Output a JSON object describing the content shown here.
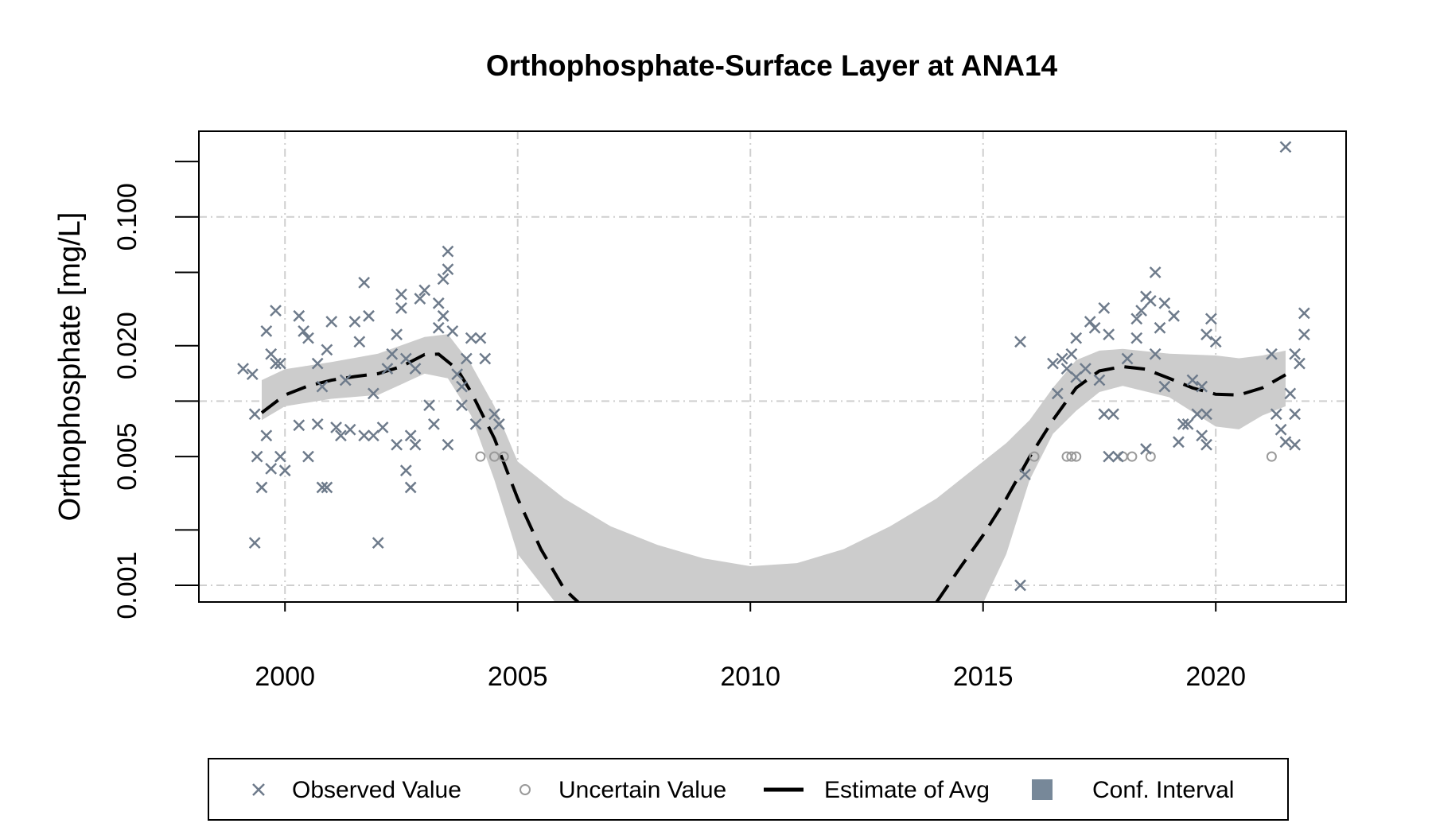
{
  "chart_data": {
    "type": "scatter",
    "title": "Orthophosphate-Surface Layer at ANA14",
    "y_label": "Orthophosphate [mg/L]",
    "log_y": true,
    "xlim": [
      1998.15,
      2022.8
    ],
    "ylim": [
      0.000812,
      0.292
    ],
    "xticks": [
      2000,
      2005,
      2010,
      2015,
      2020
    ],
    "yticks": [
      0.001,
      0.005,
      {
        "value": 0.02,
        "label": "0.020"
      },
      {
        "value": 0.1,
        "label": "0.100"
      }
    ],
    "yminorticks": [
      0.002,
      0.01,
      0.05,
      0.2
    ],
    "ygrid": [
      0.001,
      0.01,
      0.1
    ],
    "grid": true,
    "legend": "bottom",
    "series": [
      {
        "name": "Observed Value",
        "kind": "x",
        "color": "#6e7b8b",
        "x": [
          1999.1,
          1999.3,
          1999.35,
          1999.4,
          1999.35,
          1999.5,
          1999.6,
          1999.7,
          1999.6,
          1999.7,
          1999.8,
          1999.8,
          1999.9,
          1999.9,
          2000.0,
          2000.3,
          2000.3,
          2000.4,
          2000.5,
          2000.5,
          2000.7,
          2000.7,
          2000.8,
          2000.8,
          2000.9,
          2000.9,
          2001.0,
          2001.1,
          2001.2,
          2001.3,
          2001.4,
          2001.5,
          2001.6,
          2001.7,
          2001.7,
          2001.8,
          2001.9,
          2001.9,
          2002.0,
          2002.1,
          2002.2,
          2002.3,
          2002.4,
          2002.4,
          2002.5,
          2002.5,
          2002.6,
          2002.6,
          2002.7,
          2002.7,
          2002.8,
          2002.9,
          2002.8,
          2003.0,
          2003.1,
          2003.2,
          2003.3,
          2003.3,
          2003.4,
          2003.4,
          2003.5,
          2003.5,
          2003.5,
          2003.6,
          2003.7,
          2003.8,
          2003.8,
          2003.9,
          2004.0,
          2004.1,
          2004.2,
          2004.3,
          2004.5,
          2004.6,
          2015.8,
          2015.8,
          2015.9,
          2016.5,
          2016.6,
          2016.7,
          2016.8,
          2016.9,
          2017.0,
          2017.0,
          2017.2,
          2017.3,
          2017.4,
          2017.5,
          2017.6,
          2017.6,
          2017.7,
          2017.7,
          2017.8,
          2017.9,
          2018.1,
          2018.3,
          2018.3,
          2018.4,
          2018.5,
          2018.5,
          2018.6,
          2018.7,
          2018.7,
          2018.8,
          2018.9,
          2018.9,
          2019.1,
          2019.2,
          2019.3,
          2019.4,
          2019.5,
          2019.6,
          2019.7,
          2019.7,
          2019.8,
          2019.8,
          2019.8,
          2019.9,
          2020.0,
          2021.2,
          2021.3,
          2021.4,
          2021.5,
          2021.5,
          2021.6,
          2021.7,
          2021.7,
          2021.9,
          2021.8,
          2021.7,
          2021.9
        ],
        "values": [
          0.015,
          0.014,
          0.0085,
          0.005,
          0.0017,
          0.0034,
          0.0065,
          0.0043,
          0.024,
          0.018,
          0.016,
          0.031,
          0.016,
          0.005,
          0.0042,
          0.0074,
          0.029,
          0.024,
          0.022,
          0.005,
          0.016,
          0.0075,
          0.012,
          0.0034,
          0.019,
          0.0034,
          0.027,
          0.0072,
          0.0065,
          0.013,
          0.007,
          0.027,
          0.021,
          0.044,
          0.0065,
          0.029,
          0.011,
          0.0065,
          0.0017,
          0.0072,
          0.015,
          0.018,
          0.023,
          0.0058,
          0.038,
          0.032,
          0.017,
          0.0042,
          0.0034,
          0.0065,
          0.015,
          0.036,
          0.0058,
          0.04,
          0.0095,
          0.0075,
          0.034,
          0.025,
          0.029,
          0.046,
          0.052,
          0.065,
          0.0058,
          0.024,
          0.014,
          0.012,
          0.0095,
          0.017,
          0.022,
          0.0075,
          0.022,
          0.017,
          0.0085,
          0.0075,
          0.021,
          0.001,
          0.004,
          0.016,
          0.011,
          0.017,
          0.015,
          0.018,
          0.022,
          0.0135,
          0.015,
          0.027,
          0.025,
          0.013,
          0.032,
          0.0085,
          0.023,
          0.005,
          0.0085,
          0.005,
          0.017,
          0.022,
          0.028,
          0.031,
          0.037,
          0.0055,
          0.035,
          0.05,
          0.018,
          0.025,
          0.034,
          0.012,
          0.029,
          0.006,
          0.0075,
          0.0075,
          0.013,
          0.0085,
          0.012,
          0.0065,
          0.0085,
          0.0058,
          0.023,
          0.028,
          0.021,
          0.018,
          0.0085,
          0.007,
          0.006,
          0.24,
          0.011,
          0.0085,
          0.018,
          0.023,
          0.016,
          0.0058,
          0.03
        ]
      },
      {
        "name": "Uncertain Value",
        "kind": "o",
        "color": "#9a9a9a",
        "x": [
          2004.2,
          2004.5,
          2004.7,
          2016.1,
          2016.8,
          2016.9,
          2017.0,
          2018.0,
          2018.2,
          2018.6,
          2021.2
        ],
        "values": [
          0.005,
          0.005,
          0.005,
          0.005,
          0.005,
          0.005,
          0.005,
          0.005,
          0.005,
          0.005,
          0.005
        ]
      },
      {
        "name": "Estimate of Avg",
        "kind": "line",
        "color": "#000000",
        "x": [
          1999.5,
          2000,
          2000.5,
          2001,
          2001.5,
          2002,
          2002.5,
          2003,
          2003.3,
          2003.7,
          2004,
          2004.5,
          2005,
          2005.5,
          2006,
          2006.3,
          2010,
          2014,
          2014.5,
          2015,
          2015.5,
          2016,
          2016.5,
          2017,
          2017.5,
          2018,
          2018.5,
          2019,
          2019.5,
          2020,
          2020.5,
          2021,
          2021.5
        ],
        "values": [
          0.00865,
          0.0108,
          0.0121,
          0.013,
          0.0136,
          0.0141,
          0.0154,
          0.0179,
          0.018,
          0.0149,
          0.0112,
          0.00627,
          0.00296,
          0.00157,
          0.000955,
          0.00081,
          null,
          0.00081,
          0.00124,
          0.00187,
          0.00296,
          0.00498,
          0.00789,
          0.0118,
          0.0146,
          0.0154,
          0.0149,
          0.0133,
          0.0118,
          0.0109,
          0.0108,
          0.0118,
          0.0139
        ]
      },
      {
        "name": "Conf. Interval",
        "kind": "band",
        "color": "#cccccc",
        "legend_color": "#778899",
        "x": [
          1999.5,
          2000,
          2001,
          2002,
          2003,
          2003.5,
          2004,
          2004.5,
          2005,
          2006,
          2007,
          2008,
          2009,
          2010,
          2011,
          2012,
          2013,
          2014,
          2015,
          2015.5,
          2016,
          2016.5,
          2017,
          2017.5,
          2018,
          2019,
          2020,
          2020.5,
          2021,
          2021.5
        ],
        "upper": [
          0.013,
          0.0149,
          0.0163,
          0.0181,
          0.0223,
          0.0231,
          0.0158,
          0.00938,
          0.0047,
          0.00296,
          0.00209,
          0.00166,
          0.0014,
          0.00127,
          0.00132,
          0.00157,
          0.00209,
          0.00296,
          0.0047,
          0.00592,
          0.00789,
          0.0118,
          0.0167,
          0.0188,
          0.0192,
          0.0181,
          0.0177,
          0.0171,
          0.0177,
          0.0188
        ],
        "lower": [
          0.00789,
          0.00938,
          0.0103,
          0.0108,
          0.0141,
          0.0133,
          0.00836,
          0.00373,
          0.00148,
          0.0007,
          0.0007,
          0.0007,
          0.0007,
          0.0007,
          0.0007,
          0.0007,
          0.0007,
          0.0007,
          0.0008,
          0.00148,
          0.00373,
          0.00664,
          0.00886,
          0.0112,
          0.0121,
          0.0105,
          0.00728,
          0.00703,
          0.00836,
          0.00938
        ]
      }
    ]
  }
}
